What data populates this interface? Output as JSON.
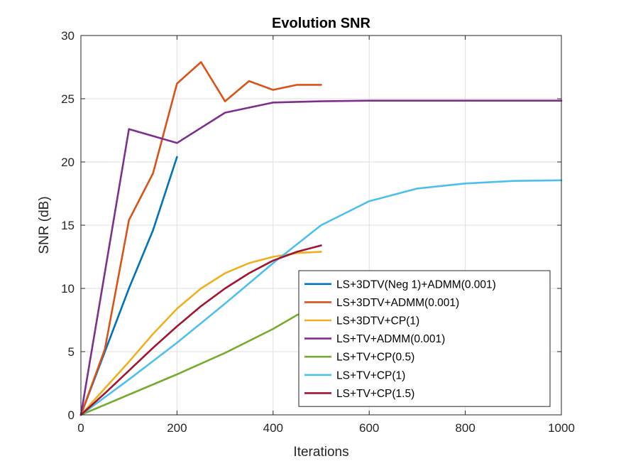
{
  "chart_data": {
    "type": "line",
    "title": "Evolution SNR",
    "xlabel": "Iterations",
    "ylabel": "SNR (dB)",
    "xlim": [
      0,
      1000
    ],
    "ylim": [
      0,
      30
    ],
    "xticks": [
      0,
      200,
      400,
      600,
      800,
      1000
    ],
    "yticks": [
      0,
      5,
      10,
      15,
      20,
      25,
      30
    ],
    "grid": true,
    "legend_position": "bottom-right",
    "series": [
      {
        "name": "LS+3DTV(Neg 1)+ADMM(0.001)",
        "color": "#0072BD",
        "x": [
          0,
          50,
          100,
          150,
          200
        ],
        "y": [
          0,
          5.0,
          10.0,
          14.6,
          20.4
        ]
      },
      {
        "name": "LS+3DTV+ADMM(0.001)",
        "color": "#D95319",
        "x": [
          0,
          50,
          100,
          150,
          200,
          250,
          300,
          350,
          400,
          450,
          500
        ],
        "y": [
          0,
          5.2,
          15.4,
          19.1,
          26.2,
          27.9,
          24.8,
          26.4,
          25.7,
          26.1,
          26.1
        ]
      },
      {
        "name": "LS+3DTV+CP(1)",
        "color": "#EDB120",
        "x": [
          0,
          50,
          100,
          150,
          200,
          250,
          300,
          350,
          400,
          450,
          500
        ],
        "y": [
          0,
          2.1,
          4.2,
          6.4,
          8.4,
          10.0,
          11.2,
          12.0,
          12.5,
          12.8,
          12.9
        ]
      },
      {
        "name": "LS+TV+ADMM(0.001)",
        "color": "#7E2F8E",
        "x": [
          0,
          100,
          200,
          300,
          400,
          500,
          600,
          700,
          800,
          900,
          1000
        ],
        "y": [
          0,
          22.6,
          21.5,
          23.9,
          24.7,
          24.8,
          24.85,
          24.85,
          24.85,
          24.85,
          24.85
        ]
      },
      {
        "name": "LS+TV+CP(0.5)",
        "color": "#77AC30",
        "x": [
          0,
          100,
          200,
          300,
          400,
          450,
          500
        ],
        "y": [
          0,
          1.6,
          3.2,
          4.9,
          6.8,
          7.9,
          8.7
        ]
      },
      {
        "name": "LS+TV+CP(1)",
        "color": "#4DBEEE",
        "x": [
          0,
          100,
          200,
          300,
          400,
          500,
          600,
          700,
          800,
          900,
          1000
        ],
        "y": [
          0,
          2.8,
          5.7,
          8.8,
          12.0,
          15.0,
          16.9,
          17.9,
          18.3,
          18.5,
          18.55
        ]
      },
      {
        "name": "LS+TV+CP(1.5)",
        "color": "#A2142F",
        "x": [
          0,
          50,
          100,
          150,
          200,
          250,
          300,
          350,
          400,
          450,
          500
        ],
        "y": [
          0,
          1.7,
          3.5,
          5.3,
          7.0,
          8.6,
          10.0,
          11.2,
          12.2,
          12.9,
          13.4
        ]
      }
    ]
  }
}
